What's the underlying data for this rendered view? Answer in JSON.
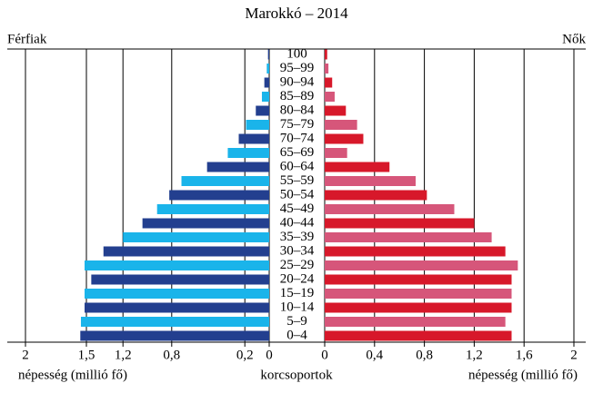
{
  "chart_data": {
    "type": "pyramid",
    "title": "Marokkó – 2014",
    "categories": [
      "0–4",
      "5–9",
      "10–14",
      "15–19",
      "20–24",
      "25–29",
      "30–34",
      "35–39",
      "40–44",
      "45–49",
      "50–54",
      "55–59",
      "60–64",
      "65–69",
      "70–74",
      "75–79",
      "80–84",
      "85–89",
      "90–94",
      "95–99",
      "100"
    ],
    "series": [
      {
        "name": "Férfiak",
        "side": "left",
        "colors": [
          "#233f8f",
          "#1ab4ea"
        ],
        "values": [
          1.55,
          1.545,
          1.515,
          1.515,
          1.46,
          1.515,
          1.36,
          1.2,
          1.04,
          0.92,
          0.82,
          0.72,
          0.51,
          0.34,
          0.25,
          0.19,
          0.11,
          0.06,
          0.04,
          0.02,
          0.01
        ]
      },
      {
        "name": "Nők",
        "side": "right",
        "colors": [
          "#d7182a",
          "#d6567a"
        ],
        "values": [
          1.5,
          1.45,
          1.5,
          1.5,
          1.5,
          1.55,
          1.45,
          1.34,
          1.2,
          1.04,
          0.82,
          0.73,
          0.52,
          0.18,
          0.31,
          0.26,
          0.17,
          0.08,
          0.06,
          0.03,
          0.02
        ]
      }
    ],
    "x_left_label": "népesség (millió fő)",
    "x_center_label": "korcsoportok",
    "x_right_label": "népesség (millió fő)",
    "x_left_lim": [
      0,
      2
    ],
    "x_right_lim": [
      0,
      2
    ],
    "x_left_ticks": [
      2,
      {
        "value": 1.5,
        "label": "1,5"
      },
      {
        "value": 1.2,
        "label": "1,2"
      },
      {
        "value": 0.8,
        "label": "0,8"
      },
      {
        "value": 0.2,
        "label": "0,2"
      },
      0
    ],
    "x_right_ticks": [
      0,
      {
        "value": 0.4,
        "label": "0,4"
      },
      {
        "value": 0.8,
        "label": "0,8"
      },
      {
        "value": 1.2,
        "label": "1,2"
      },
      {
        "value": 1.6,
        "label": "1,6"
      },
      2
    ],
    "grid": true
  }
}
